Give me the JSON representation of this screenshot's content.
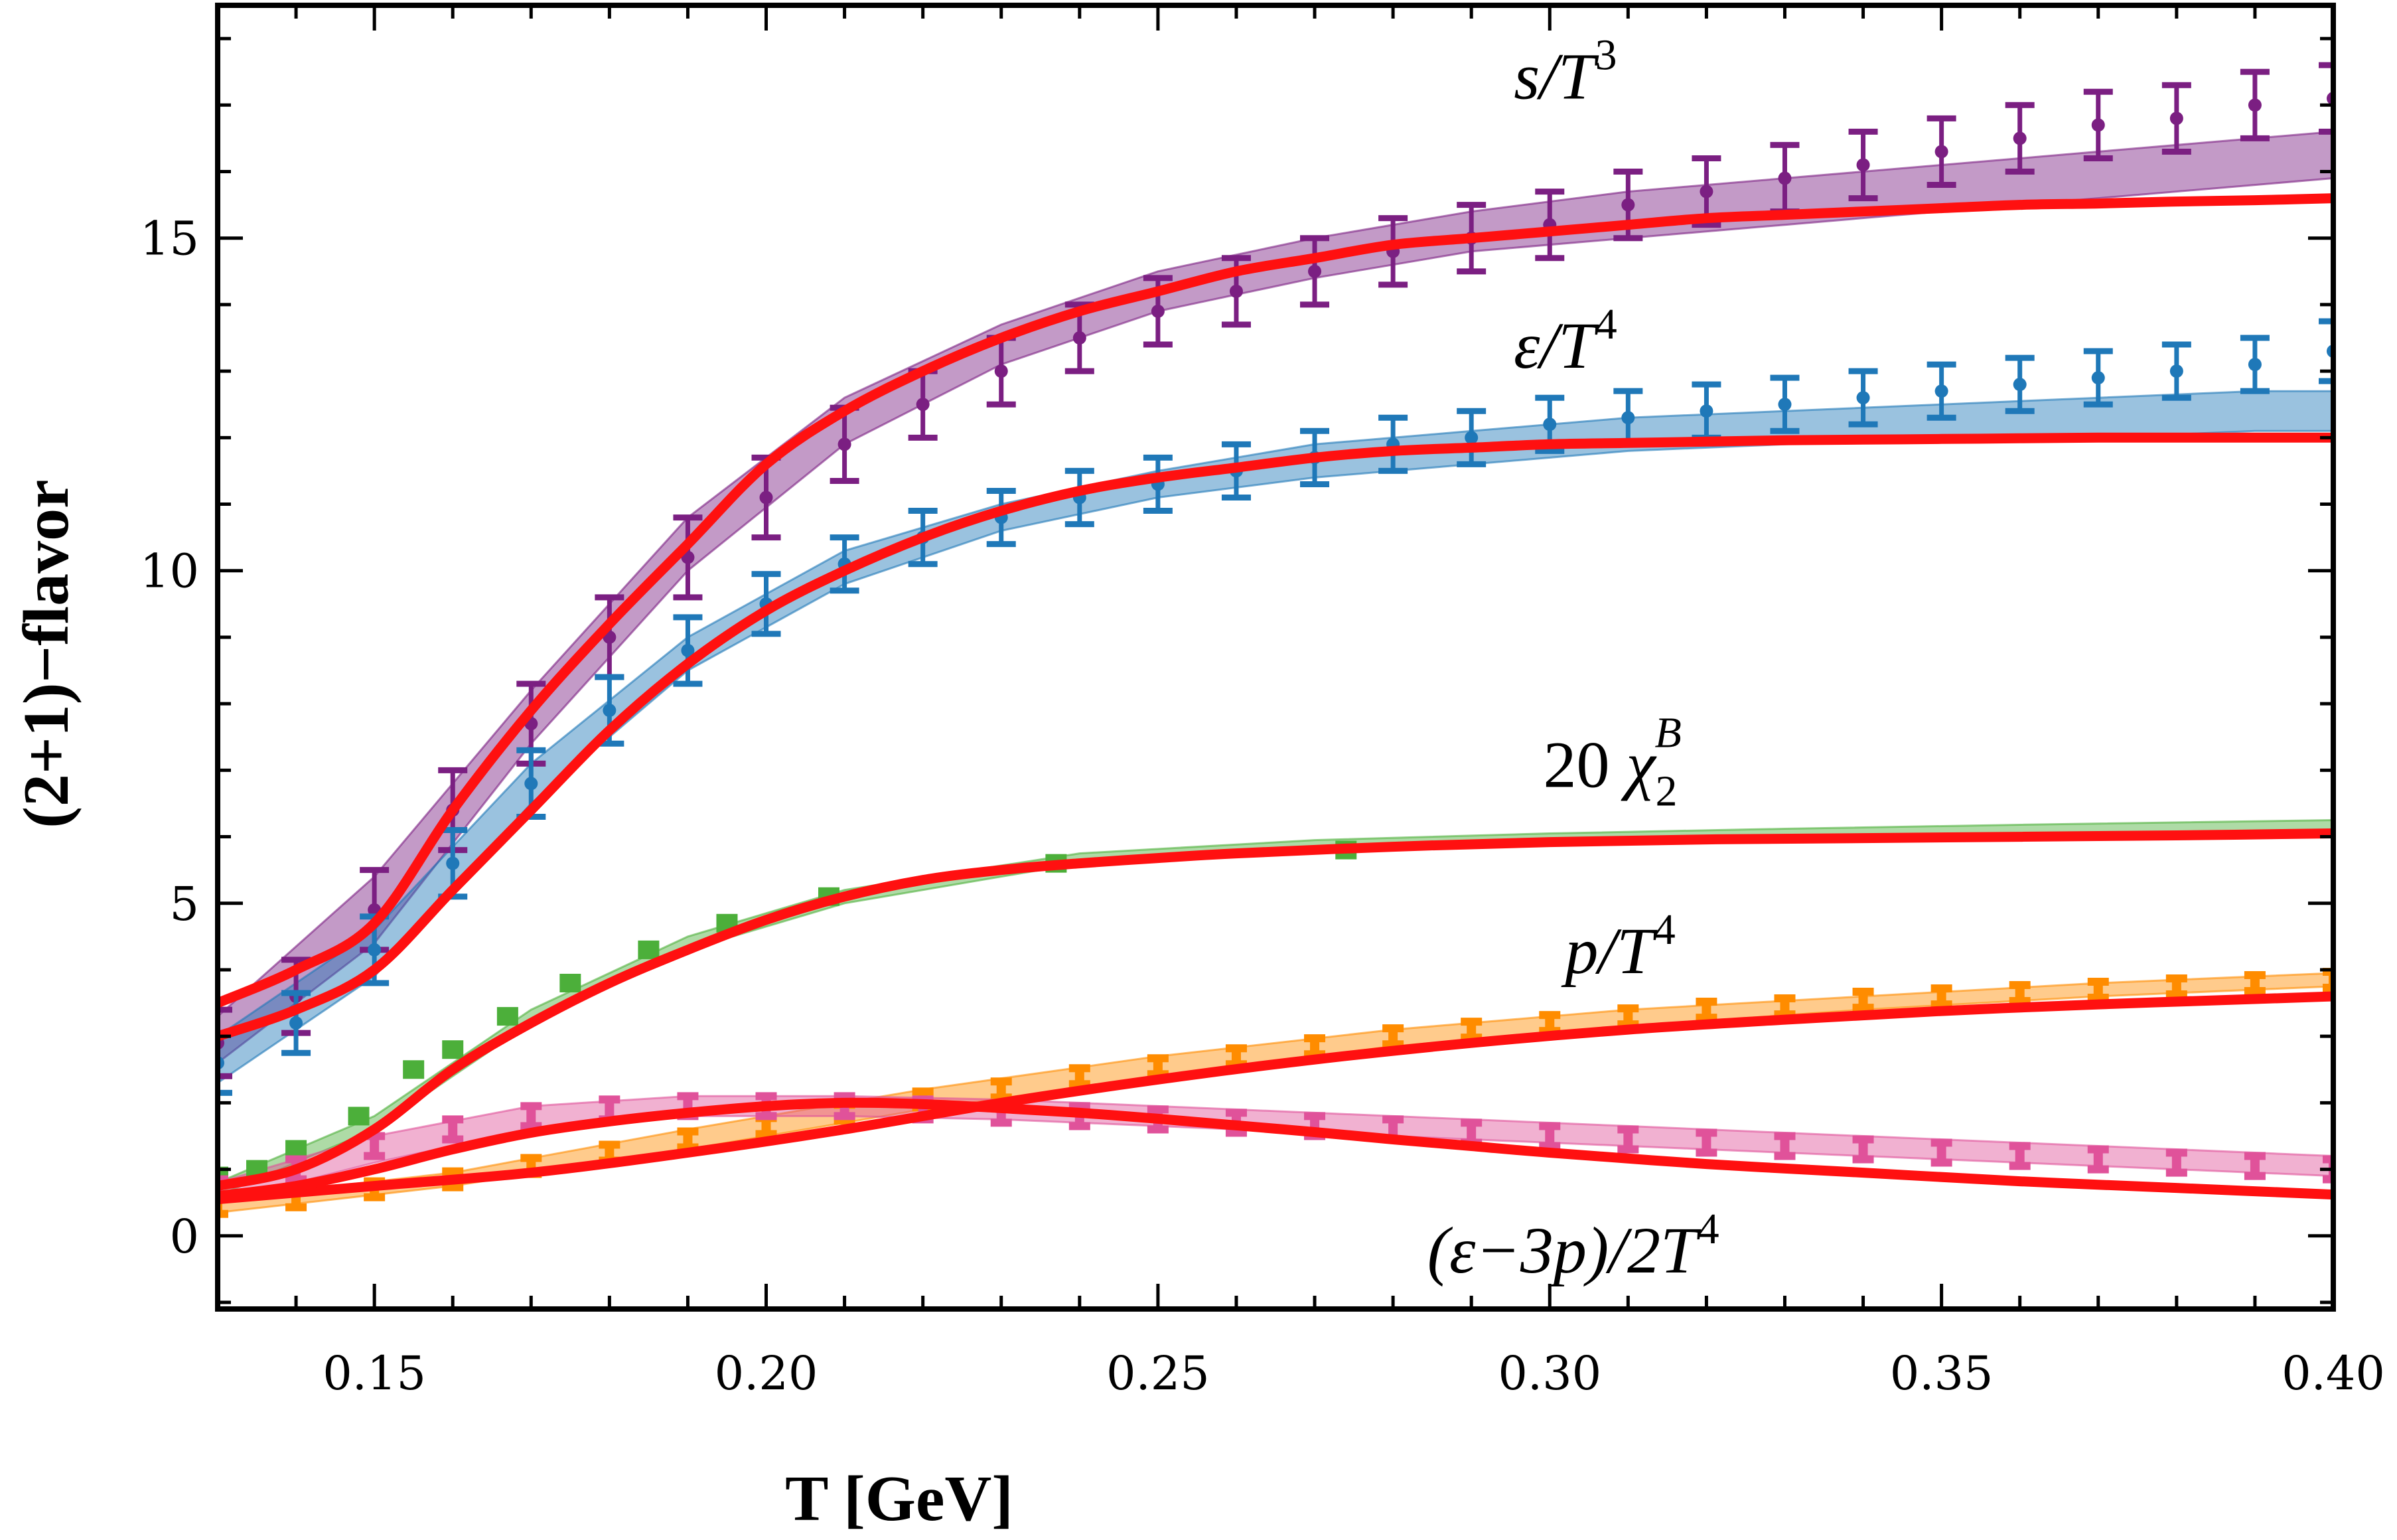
{
  "chart_data": {
    "type": "line",
    "xlabel": "T [GeV]",
    "ylabel": "(2+1)−flavor",
    "xlim": [
      0.13,
      0.4
    ],
    "ylim": [
      -1.1,
      18.5
    ],
    "xticks": [
      {
        "value": 0.15,
        "label": "0.15"
      },
      {
        "value": 0.2,
        "label": "0.20"
      },
      {
        "value": 0.25,
        "label": "0.25"
      },
      {
        "value": 0.3,
        "label": "0.30"
      },
      {
        "value": 0.35,
        "label": "0.35"
      },
      {
        "value": 0.4,
        "label": "0.40"
      }
    ],
    "yticks": [
      {
        "value": 0,
        "label": "0"
      },
      {
        "value": 5,
        "label": "5"
      },
      {
        "value": 10,
        "label": "10"
      },
      {
        "value": 15,
        "label": "15"
      }
    ],
    "grid": false,
    "colors": {
      "entropy": "#7b1f82",
      "energy": "#1f78b8",
      "chi": "#4caf3a",
      "pressure": "#ff8c00",
      "trace": "#e0529a",
      "model": "#ff1010"
    },
    "series": [
      {
        "key": "entropy",
        "name": "s/T^3",
        "label_main": "s/T",
        "label_sup": "3",
        "label_anchor": {
          "x": 0.302,
          "y": 17.1
        },
        "x": [
          0.13,
          0.14,
          0.15,
          0.16,
          0.17,
          0.18,
          0.19,
          0.2,
          0.21,
          0.22,
          0.23,
          0.24,
          0.25,
          0.26,
          0.27,
          0.28,
          0.29,
          0.3,
          0.31,
          0.32,
          0.33,
          0.34,
          0.35,
          0.36,
          0.37,
          0.38,
          0.39,
          0.4
        ],
        "y": [
          2.9,
          3.6,
          4.9,
          6.4,
          7.7,
          9.0,
          10.2,
          11.1,
          11.9,
          12.5,
          13.0,
          13.5,
          13.9,
          14.2,
          14.5,
          14.8,
          15.0,
          15.2,
          15.5,
          15.7,
          15.9,
          16.1,
          16.3,
          16.5,
          16.7,
          16.8,
          17.0,
          17.1
        ],
        "err": [
          0.5,
          0.55,
          0.6,
          0.6,
          0.6,
          0.6,
          0.6,
          0.6,
          0.55,
          0.5,
          0.5,
          0.5,
          0.5,
          0.5,
          0.5,
          0.5,
          0.5,
          0.5,
          0.5,
          0.5,
          0.5,
          0.5,
          0.5,
          0.5,
          0.5,
          0.5,
          0.5,
          0.5
        ],
        "band_x": [
          0.13,
          0.15,
          0.17,
          0.19,
          0.21,
          0.23,
          0.25,
          0.27,
          0.29,
          0.31,
          0.33,
          0.35,
          0.37,
          0.39,
          0.4
        ],
        "band_lo": [
          2.6,
          4.4,
          7.4,
          10.0,
          11.9,
          13.1,
          13.9,
          14.4,
          14.8,
          15.0,
          15.2,
          15.4,
          15.6,
          15.8,
          15.9
        ],
        "band_hi": [
          3.3,
          5.4,
          8.2,
          10.8,
          12.6,
          13.7,
          14.5,
          15.0,
          15.4,
          15.7,
          15.9,
          16.1,
          16.3,
          16.5,
          16.6
        ],
        "model_x": [
          0.13,
          0.14,
          0.15,
          0.16,
          0.17,
          0.18,
          0.19,
          0.2,
          0.21,
          0.22,
          0.23,
          0.24,
          0.25,
          0.26,
          0.27,
          0.28,
          0.29,
          0.3,
          0.31,
          0.32,
          0.33,
          0.34,
          0.35,
          0.36,
          0.37,
          0.38,
          0.39,
          0.4
        ],
        "model_y": [
          3.5,
          4.0,
          4.7,
          6.4,
          7.9,
          9.2,
          10.4,
          11.6,
          12.4,
          13.0,
          13.5,
          13.9,
          14.2,
          14.5,
          14.7,
          14.9,
          15.0,
          15.1,
          15.2,
          15.3,
          15.35,
          15.4,
          15.45,
          15.5,
          15.52,
          15.55,
          15.57,
          15.6
        ]
      },
      {
        "key": "energy",
        "name": "ε/T^4",
        "label_main": "ε/T",
        "label_sup": "4",
        "label_anchor": {
          "x": 0.302,
          "y": 13.05
        },
        "x": [
          0.13,
          0.14,
          0.15,
          0.16,
          0.17,
          0.18,
          0.19,
          0.2,
          0.21,
          0.22,
          0.23,
          0.24,
          0.25,
          0.26,
          0.27,
          0.28,
          0.29,
          0.3,
          0.31,
          0.32,
          0.33,
          0.34,
          0.35,
          0.36,
          0.37,
          0.38,
          0.39,
          0.4
        ],
        "y": [
          2.6,
          3.2,
          4.3,
          5.6,
          6.8,
          7.9,
          8.8,
          9.5,
          10.1,
          10.5,
          10.8,
          11.1,
          11.3,
          11.5,
          11.7,
          11.9,
          12.0,
          12.2,
          12.3,
          12.4,
          12.5,
          12.6,
          12.7,
          12.8,
          12.9,
          13.0,
          13.1,
          13.3
        ],
        "err": [
          0.45,
          0.45,
          0.5,
          0.5,
          0.5,
          0.5,
          0.5,
          0.45,
          0.4,
          0.4,
          0.4,
          0.4,
          0.4,
          0.4,
          0.4,
          0.4,
          0.4,
          0.4,
          0.4,
          0.4,
          0.4,
          0.4,
          0.4,
          0.4,
          0.4,
          0.4,
          0.4,
          0.45
        ],
        "band_x": [
          0.13,
          0.15,
          0.17,
          0.19,
          0.21,
          0.23,
          0.25,
          0.27,
          0.29,
          0.31,
          0.33,
          0.35,
          0.37,
          0.39,
          0.4
        ],
        "band_lo": [
          2.3,
          3.9,
          6.5,
          8.5,
          9.8,
          10.6,
          11.1,
          11.4,
          11.6,
          11.8,
          11.9,
          12.0,
          12.0,
          12.1,
          12.1
        ],
        "band_hi": [
          3.0,
          4.6,
          7.1,
          9.0,
          10.3,
          11.0,
          11.5,
          11.9,
          12.1,
          12.3,
          12.4,
          12.5,
          12.6,
          12.7,
          12.7
        ],
        "model_x": [
          0.13,
          0.14,
          0.15,
          0.16,
          0.17,
          0.18,
          0.19,
          0.2,
          0.21,
          0.22,
          0.23,
          0.24,
          0.25,
          0.26,
          0.27,
          0.28,
          0.29,
          0.3,
          0.31,
          0.32,
          0.33,
          0.34,
          0.35,
          0.36,
          0.37,
          0.38,
          0.39,
          0.4
        ],
        "model_y": [
          3.0,
          3.4,
          4.0,
          5.2,
          6.4,
          7.6,
          8.6,
          9.4,
          10.0,
          10.5,
          10.9,
          11.2,
          11.4,
          11.55,
          11.7,
          11.8,
          11.85,
          11.9,
          11.92,
          11.94,
          11.96,
          11.97,
          11.98,
          11.99,
          12.0,
          12.0,
          12.0,
          12.0
        ]
      },
      {
        "key": "chi",
        "name": "20 χ_2^B",
        "label_prefix": "20",
        "label_main": "χ",
        "label_sub": "2",
        "label_sup": "B",
        "label_anchor": {
          "x": 0.308,
          "y": 6.75
        },
        "points_x": [
          0.13,
          0.135,
          0.14,
          0.148,
          0.155,
          0.16,
          0.167,
          0.175,
          0.185,
          0.195,
          0.208,
          0.237,
          0.274
        ],
        "points_y": [
          0.9,
          1.0,
          1.3,
          1.8,
          2.5,
          2.8,
          3.3,
          3.8,
          4.3,
          4.7,
          5.1,
          5.6,
          5.8
        ],
        "band_x": [
          0.13,
          0.15,
          0.17,
          0.19,
          0.21,
          0.24,
          0.27,
          0.3,
          0.33,
          0.36,
          0.4
        ],
        "band_lo": [
          0.6,
          1.6,
          3.2,
          4.3,
          5.0,
          5.6,
          5.8,
          5.9,
          6.0,
          6.05,
          6.1
        ],
        "band_hi": [
          0.8,
          1.8,
          3.4,
          4.5,
          5.2,
          5.75,
          5.95,
          6.05,
          6.12,
          6.18,
          6.25
        ],
        "model_x": [
          0.13,
          0.14,
          0.15,
          0.16,
          0.17,
          0.18,
          0.19,
          0.2,
          0.21,
          0.22,
          0.23,
          0.24,
          0.25,
          0.26,
          0.28,
          0.3,
          0.32,
          0.34,
          0.36,
          0.38,
          0.4
        ],
        "model_y": [
          0.75,
          1.0,
          1.6,
          2.5,
          3.2,
          3.8,
          4.3,
          4.75,
          5.1,
          5.35,
          5.5,
          5.6,
          5.68,
          5.75,
          5.85,
          5.92,
          5.96,
          5.98,
          6.0,
          6.02,
          6.05
        ]
      },
      {
        "key": "pressure",
        "name": "p/T^4",
        "label_main": "p/T",
        "label_sup": "4",
        "label_anchor": {
          "x": 0.309,
          "y": 3.95
        },
        "x": [
          0.13,
          0.14,
          0.15,
          0.16,
          0.17,
          0.18,
          0.19,
          0.2,
          0.21,
          0.22,
          0.23,
          0.24,
          0.25,
          0.26,
          0.27,
          0.28,
          0.29,
          0.3,
          0.31,
          0.32,
          0.33,
          0.34,
          0.35,
          0.36,
          0.37,
          0.38,
          0.39,
          0.4
        ],
        "y": [
          0.45,
          0.55,
          0.7,
          0.85,
          1.05,
          1.25,
          1.45,
          1.65,
          1.85,
          2.05,
          2.2,
          2.4,
          2.55,
          2.7,
          2.85,
          3.0,
          3.1,
          3.2,
          3.3,
          3.4,
          3.45,
          3.55,
          3.6,
          3.65,
          3.7,
          3.75,
          3.8,
          3.85
        ],
        "err": [
          0.12,
          0.12,
          0.12,
          0.12,
          0.12,
          0.12,
          0.12,
          0.12,
          0.12,
          0.12,
          0.12,
          0.12,
          0.12,
          0.12,
          0.12,
          0.12,
          0.12,
          0.12,
          0.12,
          0.12,
          0.12,
          0.12,
          0.12,
          0.12,
          0.12,
          0.12,
          0.12,
          0.12
        ],
        "band_x": [
          0.13,
          0.16,
          0.19,
          0.22,
          0.25,
          0.28,
          0.31,
          0.34,
          0.37,
          0.4
        ],
        "band_lo": [
          0.35,
          0.75,
          1.3,
          1.9,
          2.4,
          2.85,
          3.15,
          3.4,
          3.6,
          3.75
        ],
        "band_hi": [
          0.55,
          0.95,
          1.6,
          2.2,
          2.7,
          3.1,
          3.4,
          3.6,
          3.8,
          3.95
        ],
        "model_x": [
          0.13,
          0.15,
          0.17,
          0.19,
          0.21,
          0.23,
          0.25,
          0.27,
          0.29,
          0.31,
          0.33,
          0.35,
          0.37,
          0.39,
          0.4
        ],
        "model_y": [
          0.55,
          0.75,
          0.95,
          1.25,
          1.6,
          2.0,
          2.35,
          2.65,
          2.9,
          3.1,
          3.25,
          3.38,
          3.48,
          3.56,
          3.6
        ]
      },
      {
        "key": "trace",
        "name": "(ε−3p)/2T^4",
        "label_main": "(ε−3p)/2T",
        "label_sup": "4",
        "label_anchor": {
          "x": 0.303,
          "y": -0.55
        },
        "x": [
          0.13,
          0.14,
          0.15,
          0.16,
          0.17,
          0.18,
          0.19,
          0.2,
          0.21,
          0.22,
          0.23,
          0.24,
          0.25,
          0.26,
          0.27,
          0.28,
          0.29,
          0.3,
          0.31,
          0.32,
          0.33,
          0.34,
          0.35,
          0.36,
          0.37,
          0.38,
          0.39,
          0.4
        ],
        "y": [
          0.7,
          1.0,
          1.35,
          1.6,
          1.8,
          1.9,
          1.95,
          1.95,
          1.95,
          1.9,
          1.85,
          1.8,
          1.75,
          1.7,
          1.65,
          1.6,
          1.55,
          1.5,
          1.45,
          1.4,
          1.35,
          1.3,
          1.25,
          1.2,
          1.15,
          1.1,
          1.05,
          1.0
        ],
        "err": [
          0.15,
          0.15,
          0.15,
          0.15,
          0.15,
          0.15,
          0.15,
          0.15,
          0.15,
          0.15,
          0.15,
          0.15,
          0.15,
          0.15,
          0.15,
          0.15,
          0.15,
          0.15,
          0.15,
          0.15,
          0.15,
          0.15,
          0.15,
          0.15,
          0.15,
          0.15,
          0.15,
          0.15
        ],
        "band_x": [
          0.13,
          0.15,
          0.17,
          0.19,
          0.21,
          0.23,
          0.25,
          0.27,
          0.29,
          0.31,
          0.33,
          0.35,
          0.37,
          0.4
        ],
        "band_lo": [
          0.5,
          1.1,
          1.6,
          1.8,
          1.8,
          1.75,
          1.65,
          1.55,
          1.45,
          1.35,
          1.25,
          1.15,
          1.05,
          0.9
        ],
        "band_hi": [
          0.8,
          1.5,
          1.95,
          2.1,
          2.1,
          2.05,
          1.95,
          1.85,
          1.75,
          1.65,
          1.55,
          1.45,
          1.35,
          1.2
        ],
        "model_x": [
          0.13,
          0.14,
          0.15,
          0.16,
          0.17,
          0.18,
          0.19,
          0.2,
          0.21,
          0.22,
          0.23,
          0.24,
          0.25,
          0.26,
          0.27,
          0.28,
          0.29,
          0.3,
          0.32,
          0.34,
          0.36,
          0.38,
          0.4
        ],
        "model_y": [
          0.6,
          0.75,
          1.0,
          1.3,
          1.55,
          1.72,
          1.85,
          1.95,
          2.0,
          1.98,
          1.92,
          1.85,
          1.76,
          1.66,
          1.56,
          1.45,
          1.35,
          1.25,
          1.08,
          0.95,
          0.82,
          0.72,
          0.62
        ]
      }
    ]
  }
}
